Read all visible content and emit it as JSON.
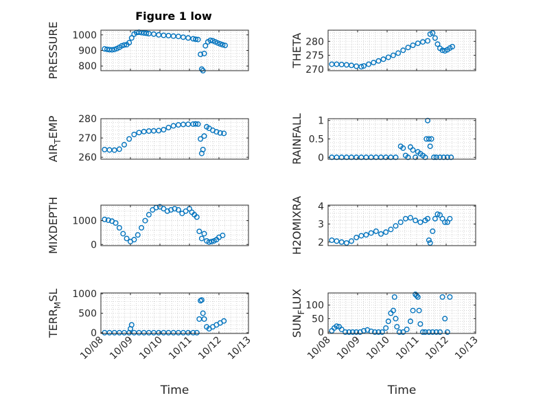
{
  "figure": {
    "title": "Figure 1 low",
    "marker_color": "#0072bd",
    "axis_color": "#262626",
    "grid_color": "#c8c8c8"
  },
  "chart_data": [
    {
      "type": "scatter",
      "name": "PRESSURE",
      "ylabel": "PRESSURE",
      "ylabel_sub": "",
      "ylabel_suffix": "",
      "xlim": [
        "10/08",
        "10/13"
      ],
      "ylim": [
        770,
        1030
      ],
      "yticks": [
        800,
        900,
        1000
      ],
      "xticks": [
        "10/08",
        "10/09",
        "10/10",
        "10/11",
        "10/12",
        "10/13"
      ],
      "xtick_labels_shown": false,
      "grid": true,
      "x": [
        "10/08 03h",
        "10/08 05h",
        "10/08 07h",
        "10/08 09h",
        "10/08 11h",
        "10/08 13h",
        "10/08 15h",
        "10/08 17h",
        "10/08 19h",
        "10/08 21h",
        "10/08 23h",
        "10/09 01h",
        "10/09 03h",
        "10/09 05h",
        "10/09 07h",
        "10/09 09h",
        "10/09 11h",
        "10/09 13h",
        "10/09 15h",
        "10/09 19h",
        "10/09 23h",
        "10/10 03h",
        "10/10 07h",
        "10/10 11h",
        "10/10 15h",
        "10/10 19h",
        "10/10 23h",
        "10/11 03h",
        "10/11 05h",
        "10/11 07h",
        "10/11 09h",
        "10/11 10h",
        "10/11 11h",
        "10/11 12h",
        "10/11 13h",
        "10/11 15h",
        "10/11 17h",
        "10/11 19h",
        "10/11 21h",
        "10/11 23h",
        "10/12 01h",
        "10/12 03h",
        "10/12 05h"
      ],
      "y": [
        910,
        907,
        905,
        904,
        906,
        912,
        920,
        930,
        935,
        937,
        950,
        980,
        1005,
        1015,
        1017,
        1014,
        1012,
        1010,
        1008,
        1005,
        1000,
        997,
        995,
        992,
        990,
        985,
        980,
        975,
        972,
        970,
        875,
        780,
        770,
        880,
        930,
        955,
        965,
        962,
        955,
        948,
        942,
        936,
        932
      ]
    },
    {
      "type": "scatter",
      "name": "THETA",
      "ylabel": "THETA",
      "ylabel_sub": "",
      "ylabel_suffix": "",
      "xlim": [
        "10/08",
        "10/13"
      ],
      "ylim": [
        269.5,
        284
      ],
      "yticks": [
        270,
        275,
        280
      ],
      "xticks": [
        "10/08",
        "10/09",
        "10/10",
        "10/11",
        "10/12",
        "10/13"
      ],
      "xtick_labels_shown": false,
      "grid": true,
      "x": [
        "10/08 03h",
        "10/08 07h",
        "10/08 11h",
        "10/08 15h",
        "10/08 19h",
        "10/08 23h",
        "10/09 03h",
        "10/09 05h",
        "10/09 09h",
        "10/09 13h",
        "10/09 17h",
        "10/09 21h",
        "10/10 01h",
        "10/10 05h",
        "10/10 09h",
        "10/10 13h",
        "10/10 17h",
        "10/10 21h",
        "10/11 01h",
        "10/11 05h",
        "10/11 09h",
        "10/11 11h",
        "10/11 13h",
        "10/11 15h",
        "10/11 17h",
        "10/11 19h",
        "10/11 21h",
        "10/11 23h",
        "10/12 01h",
        "10/12 03h",
        "10/12 05h"
      ],
      "y": [
        271.8,
        271.8,
        271.7,
        271.6,
        271.4,
        271.1,
        270.9,
        271.2,
        271.8,
        272.4,
        273.0,
        273.6,
        274.3,
        275.0,
        275.8,
        276.8,
        277.8,
        278.6,
        279.3,
        279.8,
        280.2,
        282.6,
        283.0,
        281.2,
        279.0,
        277.5,
        276.8,
        276.6,
        277.0,
        277.6,
        278.1
      ]
    },
    {
      "type": "scatter",
      "name": "AIR_TEMP",
      "ylabel": "AIR",
      "ylabel_sub": "T",
      "ylabel_suffix": "EMP",
      "xlim": [
        "10/08",
        "10/13"
      ],
      "ylim": [
        259,
        280
      ],
      "yticks": [
        260,
        270,
        280
      ],
      "xticks": [
        "10/08",
        "10/09",
        "10/10",
        "10/11",
        "10/12",
        "10/13"
      ],
      "xtick_labels_shown": false,
      "grid": true,
      "x": [
        "10/08 03h",
        "10/08 07h",
        "10/08 11h",
        "10/08 15h",
        "10/08 19h",
        "10/08 23h",
        "10/09 03h",
        "10/09 07h",
        "10/09 11h",
        "10/09 15h",
        "10/09 19h",
        "10/09 23h",
        "10/10 03h",
        "10/10 07h",
        "10/10 11h",
        "10/10 15h",
        "10/10 19h",
        "10/10 23h",
        "10/11 03h",
        "10/11 05h",
        "10/11 07h",
        "10/11 09h",
        "10/11 10h",
        "10/11 11h",
        "10/11 12h",
        "10/11 14h",
        "10/11 16h",
        "10/11 19h",
        "10/11 22h",
        "10/12 01h",
        "10/12 04h"
      ],
      "y": [
        264.0,
        263.8,
        263.7,
        264.2,
        266.5,
        269.5,
        271.8,
        272.8,
        273.3,
        273.6,
        273.7,
        273.8,
        274.3,
        275.4,
        276.3,
        276.8,
        277.0,
        277.1,
        277.2,
        277.3,
        277.2,
        269.5,
        262.0,
        264.0,
        271.0,
        275.8,
        275.0,
        274.0,
        273.2,
        272.6,
        272.4
      ]
    },
    {
      "type": "scatter",
      "name": "RAINFALL",
      "ylabel": "RAINFALL",
      "ylabel_sub": "",
      "ylabel_suffix": "",
      "xlim": [
        "10/08",
        "10/13"
      ],
      "ylim": [
        -0.05,
        1.05
      ],
      "yticks": [
        0,
        0.5,
        1
      ],
      "xticks": [
        "10/08",
        "10/09",
        "10/10",
        "10/11",
        "10/12",
        "10/13"
      ],
      "xtick_labels_shown": false,
      "grid": true,
      "x": [
        "10/08 03h",
        "10/08 07h",
        "10/08 11h",
        "10/08 15h",
        "10/08 19h",
        "10/08 23h",
        "10/09 03h",
        "10/09 07h",
        "10/09 11h",
        "10/09 15h",
        "10/09 19h",
        "10/09 23h",
        "10/10 03h",
        "10/10 07h",
        "10/10 11h",
        "10/10 13h",
        "10/10 15h",
        "10/10 17h",
        "10/10 19h",
        "10/10 21h",
        "10/10 23h",
        "10/11 01h",
        "10/11 03h",
        "10/11 05h",
        "10/11 07h",
        "10/11 08h",
        "10/11 09h",
        "10/11 10h",
        "10/11 11h",
        "10/11 12h",
        "10/11 14h",
        "10/11 16h",
        "10/11 19h",
        "10/11 22h",
        "10/12 01h",
        "10/12 04h"
      ],
      "y": [
        0,
        0,
        0,
        0,
        0,
        0,
        0,
        0,
        0,
        0,
        0,
        0,
        0,
        0,
        0.3,
        0.25,
        0.05,
        0,
        0.28,
        0.2,
        0,
        0.15,
        0.1,
        0.05,
        0,
        0.5,
        1.0,
        0.5,
        0.3,
        0.5,
        0,
        0,
        0,
        0,
        0,
        0
      ]
    },
    {
      "type": "scatter",
      "name": "MIXDEPTH",
      "ylabel": "MIXDEPTH",
      "ylabel_sub": "",
      "ylabel_suffix": "",
      "xlim": [
        "10/08",
        "10/13"
      ],
      "ylim": [
        -50,
        1650
      ],
      "yticks": [
        0,
        1000
      ],
      "xticks": [
        "10/08",
        "10/09",
        "10/10",
        "10/11",
        "10/12",
        "10/13"
      ],
      "xtick_labels_shown": false,
      "grid": true,
      "x": [
        "10/08 03h",
        "10/08 06h",
        "10/08 09h",
        "10/08 12h",
        "10/08 15h",
        "10/08 18h",
        "10/08 21h",
        "10/09 00h",
        "10/09 03h",
        "10/09 06h",
        "10/09 09h",
        "10/09 12h",
        "10/09 15h",
        "10/09 18h",
        "10/09 21h",
        "10/10 00h",
        "10/10 03h",
        "10/10 06h",
        "10/10 09h",
        "10/10 12h",
        "10/10 15h",
        "10/10 18h",
        "10/10 21h",
        "10/11 00h",
        "10/11 02h",
        "10/11 04h",
        "10/11 06h",
        "10/11 08h",
        "10/11 10h",
        "10/11 12h",
        "10/11 14h",
        "10/11 16h",
        "10/11 18h",
        "10/11 20h",
        "10/11 22h",
        "10/12 00h",
        "10/12 03h"
      ],
      "y": [
        1050,
        1020,
        980,
        900,
        700,
        450,
        250,
        120,
        200,
        400,
        700,
        1000,
        1250,
        1450,
        1550,
        1580,
        1500,
        1400,
        1450,
        1500,
        1450,
        1300,
        1400,
        1500,
        1350,
        1250,
        1150,
        550,
        250,
        450,
        150,
        100,
        120,
        150,
        200,
        300,
        380
      ]
    },
    {
      "type": "scatter",
      "name": "H2OMIXRA",
      "ylabel": "H2OMIXRA",
      "ylabel_sub": "",
      "ylabel_suffix": "",
      "xlim": [
        "10/08",
        "10/13"
      ],
      "ylim": [
        1.8,
        4.05
      ],
      "yticks": [
        2,
        3,
        4
      ],
      "xticks": [
        "10/08",
        "10/09",
        "10/10",
        "10/11",
        "10/12",
        "10/13"
      ],
      "xtick_labels_shown": false,
      "grid": true,
      "x": [
        "10/08 03h",
        "10/08 07h",
        "10/08 11h",
        "10/08 15h",
        "10/08 19h",
        "10/08 23h",
        "10/09 03h",
        "10/09 07h",
        "10/09 11h",
        "10/09 15h",
        "10/09 19h",
        "10/09 23h",
        "10/10 03h",
        "10/10 07h",
        "10/10 11h",
        "10/10 15h",
        "10/10 19h",
        "10/10 23h",
        "10/11 03h",
        "10/11 07h",
        "10/11 09h",
        "10/11 10h",
        "10/11 11h",
        "10/11 13h",
        "10/11 15h",
        "10/11 17h",
        "10/11 19h",
        "10/11 21h",
        "10/11 23h",
        "10/12 01h",
        "10/12 03h"
      ],
      "y": [
        2.1,
        2.05,
        2.0,
        1.95,
        2.05,
        2.25,
        2.35,
        2.4,
        2.5,
        2.6,
        2.45,
        2.55,
        2.7,
        2.9,
        3.1,
        3.3,
        3.35,
        3.2,
        3.1,
        3.2,
        3.3,
        2.1,
        1.95,
        2.6,
        3.3,
        3.55,
        3.5,
        3.3,
        3.1,
        3.1,
        3.3
      ]
    },
    {
      "type": "scatter",
      "name": "TERR_MSL",
      "ylabel": "TERR",
      "ylabel_sub": "M",
      "ylabel_suffix": "SL",
      "xlim": [
        "10/08",
        "10/13"
      ],
      "ylim": [
        -20,
        1020
      ],
      "yticks": [
        0,
        500,
        1000
      ],
      "xticks": [
        "10/08",
        "10/09",
        "10/10",
        "10/11",
        "10/12",
        "10/13"
      ],
      "xtick_labels_shown": true,
      "grid": true,
      "xlabel": "Time",
      "x": [
        "10/08 03h",
        "10/08 07h",
        "10/08 11h",
        "10/08 15h",
        "10/08 19h",
        "10/08 23h",
        "10/09 00h",
        "10/09 01h",
        "10/09 03h",
        "10/09 07h",
        "10/09 11h",
        "10/09 15h",
        "10/09 19h",
        "10/09 23h",
        "10/10 03h",
        "10/10 07h",
        "10/10 11h",
        "10/10 15h",
        "10/10 19h",
        "10/10 23h",
        "10/11 03h",
        "10/11 06h",
        "10/11 08h",
        "10/11 09h",
        "10/11 10h",
        "10/11 11h",
        "10/11 12h",
        "10/11 14h",
        "10/11 16h",
        "10/11 19h",
        "10/11 22h",
        "10/12 01h",
        "10/12 04h"
      ],
      "y": [
        0,
        0,
        0,
        0,
        0,
        0,
        100,
        200,
        0,
        0,
        0,
        0,
        0,
        0,
        0,
        0,
        0,
        0,
        0,
        0,
        0,
        0,
        350,
        820,
        840,
        500,
        350,
        150,
        100,
        150,
        200,
        250,
        300
      ]
    },
    {
      "type": "scatter",
      "name": "SUN_FLUX",
      "ylabel": "SUN",
      "ylabel_sub": "F",
      "ylabel_suffix": "LUX",
      "xlim": [
        "10/08",
        "10/13"
      ],
      "ylim": [
        -5,
        145
      ],
      "yticks": [
        0,
        50,
        100
      ],
      "xticks": [
        "10/08",
        "10/09",
        "10/10",
        "10/11",
        "10/12",
        "10/13"
      ],
      "xtick_labels_shown": true,
      "grid": true,
      "xlabel": "Time",
      "x": [
        "10/08 03h",
        "10/08 05h",
        "10/08 07h",
        "10/08 09h",
        "10/08 11h",
        "10/08 14h",
        "10/08 17h",
        "10/08 20h",
        "10/08 23h",
        "10/09 02h",
        "10/09 05h",
        "10/09 08h",
        "10/09 11h",
        "10/09 14h",
        "10/09 17h",
        "10/09 20h",
        "10/09 23h",
        "10/10 01h",
        "10/10 03h",
        "10/10 05h",
        "10/10 06h",
        "10/10 07h",
        "10/10 08h",
        "10/10 10h",
        "10/10 13h",
        "10/10 16h",
        "10/10 19h",
        "10/10 21h",
        "10/10 23h",
        "10/11 00h",
        "10/11 01h",
        "10/11 02h",
        "10/11 03h",
        "10/11 05h",
        "10/11 07h",
        "10/11 10h",
        "10/11 13h",
        "10/11 16h",
        "10/11 19h",
        "10/11 21h",
        "10/11 23h",
        "10/12 01h",
        "10/12 03h"
      ],
      "y": [
        5,
        15,
        22,
        20,
        10,
        0,
        0,
        0,
        0,
        0,
        5,
        8,
        3,
        0,
        0,
        0,
        15,
        40,
        70,
        80,
        130,
        50,
        20,
        0,
        0,
        10,
        40,
        80,
        140,
        135,
        130,
        80,
        30,
        0,
        0,
        0,
        0,
        0,
        0,
        130,
        50,
        0,
        130
      ]
    }
  ]
}
